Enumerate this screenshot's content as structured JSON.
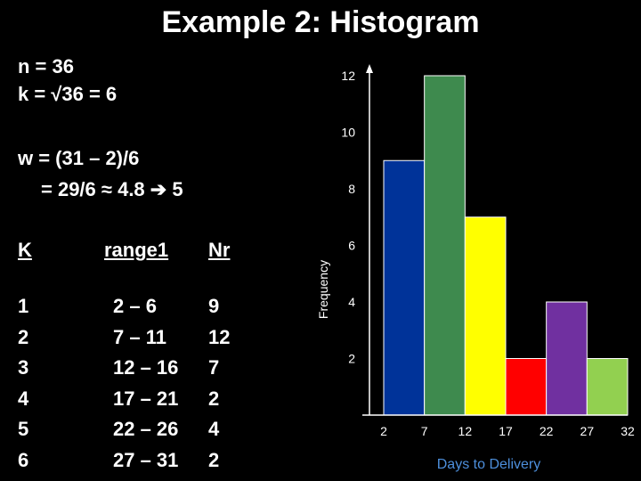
{
  "slide": {
    "title": "Example 2:  Histogram",
    "n_line": "n = 36",
    "k_line": "k = √36 = 6",
    "w_line1": "w = (31 – 2)/6",
    "w_line2": "= 29/6 ≈ 4.8 ➔ 5"
  },
  "table": {
    "headers": [
      "K",
      "range1",
      "Nr"
    ],
    "k": [
      "1",
      "2",
      "3",
      "4",
      "5",
      "6"
    ],
    "range": [
      "2 – 6",
      "7 – 11",
      "12 – 16",
      "17 – 21",
      "22 – 26",
      "27 – 31"
    ],
    "nr": [
      "9",
      "12",
      "7",
      "2",
      "4",
      "2"
    ]
  },
  "chart_data": {
    "type": "bar",
    "title": "",
    "xlabel": "Days to Delivery",
    "ylabel": "Frequency",
    "ylim": [
      0,
      12
    ],
    "yticks": [
      2,
      4,
      6,
      8,
      10,
      12
    ],
    "xticks": [
      2,
      7,
      12,
      17,
      22,
      27,
      32
    ],
    "bin_edges": [
      2,
      7,
      12,
      17,
      22,
      27,
      32
    ],
    "values": [
      9,
      12,
      7,
      2,
      4,
      2
    ],
    "colors": [
      "#003399",
      "#3e8a4e",
      "#ffff00",
      "#ff0000",
      "#7030a0",
      "#92d050"
    ],
    "grid": false
  }
}
